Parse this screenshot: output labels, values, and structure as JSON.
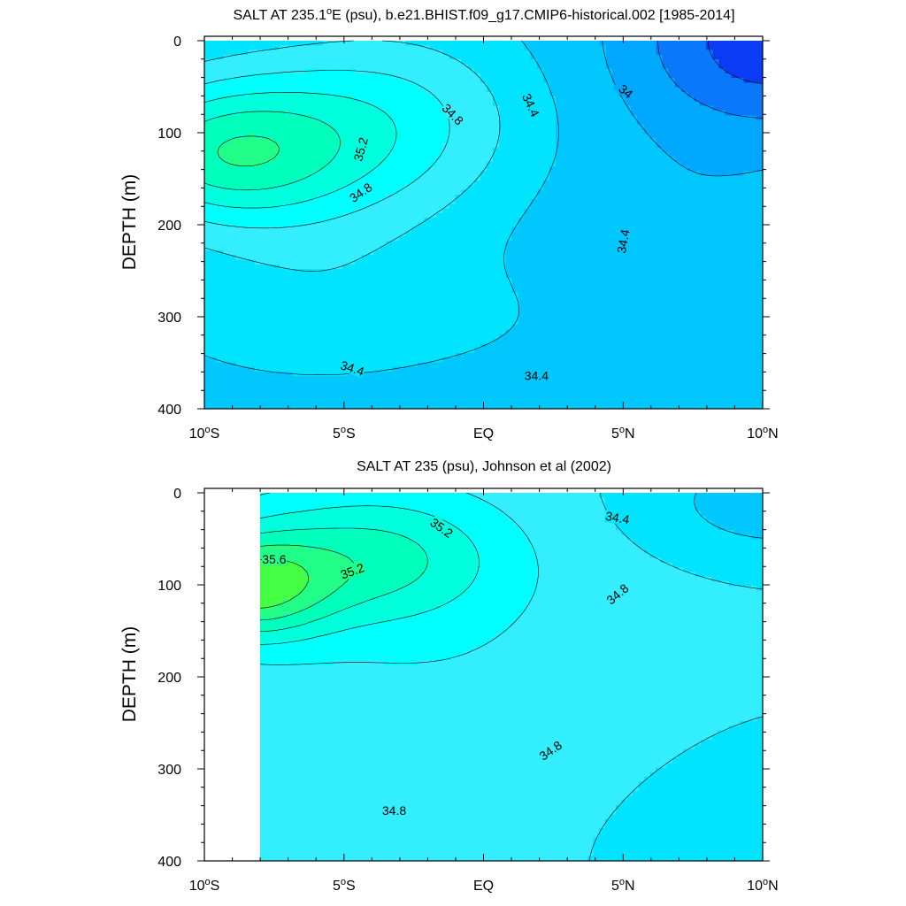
{
  "chart_data": [
    {
      "type": "contour",
      "title": "SALT AT 235.1°E (psu), b.e21.BHIST.f09_g17.CMIP6-historical.002 [1985-2014]",
      "title_parts": {
        "pre": "SALT AT 235.1",
        "sup": "o",
        "post": "E (psu), b.e21.BHIST.f09_g17.CMIP6-historical.002 [1985-2014]"
      },
      "xlabel": "",
      "ylabel": "DEPTH (m)",
      "xlim": [
        -10,
        10
      ],
      "ylim": [
        400,
        0
      ],
      "y_ticks": [
        "0",
        "100",
        "200",
        "300",
        "400"
      ],
      "x_ticks": [
        {
          "pre": "10",
          "sup": "o",
          "post": "S"
        },
        {
          "pre": "5",
          "sup": "o",
          "post": "S"
        },
        {
          "pre": "EQ",
          "sup": "",
          "post": ""
        },
        {
          "pre": "5",
          "sup": "o",
          "post": "N"
        },
        {
          "pre": "10",
          "sup": "o",
          "post": "N"
        }
      ],
      "contour_interval": 0.2,
      "contour_labels": [
        {
          "text": "34.8",
          "lat": -1.1,
          "depth": 80,
          "angle": 45
        },
        {
          "text": "35.2",
          "lat": -4.4,
          "depth": 118,
          "angle": -75
        },
        {
          "text": "34.8",
          "lat": -4.4,
          "depth": 165,
          "angle": -35
        },
        {
          "text": "34.4",
          "lat": 1.7,
          "depth": 70,
          "angle": 65
        },
        {
          "text": "34",
          "lat": 5.1,
          "depth": 55,
          "angle": 40
        },
        {
          "text": "34.4",
          "lat": 5.0,
          "depth": 218,
          "angle": -80
        },
        {
          "text": "34.4",
          "lat": -4.7,
          "depth": 356,
          "angle": 18
        },
        {
          "text": "34.4",
          "lat": 1.9,
          "depth": 364,
          "angle": 0
        }
      ]
    },
    {
      "type": "contour",
      "title": "SALT AT 235 (psu), Johnson et al (2002)",
      "title_parts": {
        "pre": "SALT AT 235 (psu), Johnson et al (2002)",
        "sup": "",
        "post": ""
      },
      "xlabel": "",
      "ylabel": "DEPTH (m)",
      "xlim": [
        -10,
        10
      ],
      "ylim": [
        400,
        0
      ],
      "y_ticks": [
        "0",
        "100",
        "200",
        "300",
        "400"
      ],
      "x_ticks": [
        {
          "pre": "10",
          "sup": "o",
          "post": "S"
        },
        {
          "pre": "5",
          "sup": "o",
          "post": "S"
        },
        {
          "pre": "EQ",
          "sup": "",
          "post": ""
        },
        {
          "pre": "5",
          "sup": "o",
          "post": "N"
        },
        {
          "pre": "10",
          "sup": "o",
          "post": "N"
        }
      ],
      "contour_interval": 0.2,
      "data_start_lat": -8,
      "contour_labels": [
        {
          "text": "35.2",
          "lat": -1.5,
          "depth": 38,
          "angle": 35
        },
        {
          "text": "35.6",
          "lat": -7.5,
          "depth": 72,
          "angle": 0
        },
        {
          "text": "35.2",
          "lat": -4.7,
          "depth": 85,
          "angle": -20
        },
        {
          "text": "34.4",
          "lat": 4.8,
          "depth": 27,
          "angle": 10
        },
        {
          "text": "34.8",
          "lat": 4.8,
          "depth": 110,
          "angle": -40
        },
        {
          "text": "34.8",
          "lat": 2.4,
          "depth": 280,
          "angle": -35
        },
        {
          "text": "34.8",
          "lat": -3.2,
          "depth": 345,
          "angle": 0
        }
      ]
    }
  ],
  "colors": {
    "fill_levels": [
      "#0000ee",
      "#0a3cf5",
      "#0a78fa",
      "#00a8ff",
      "#00c8ff",
      "#00e4ff",
      "#33eeff",
      "#00ffff",
      "#00ffdd",
      "#00ffbb",
      "#22ff88",
      "#44ff44",
      "#00ee00",
      "#88ff00",
      "#ffff00",
      "#ffd820",
      "#ffb030"
    ],
    "contour_line": "#000000",
    "background": "#ffffff"
  }
}
